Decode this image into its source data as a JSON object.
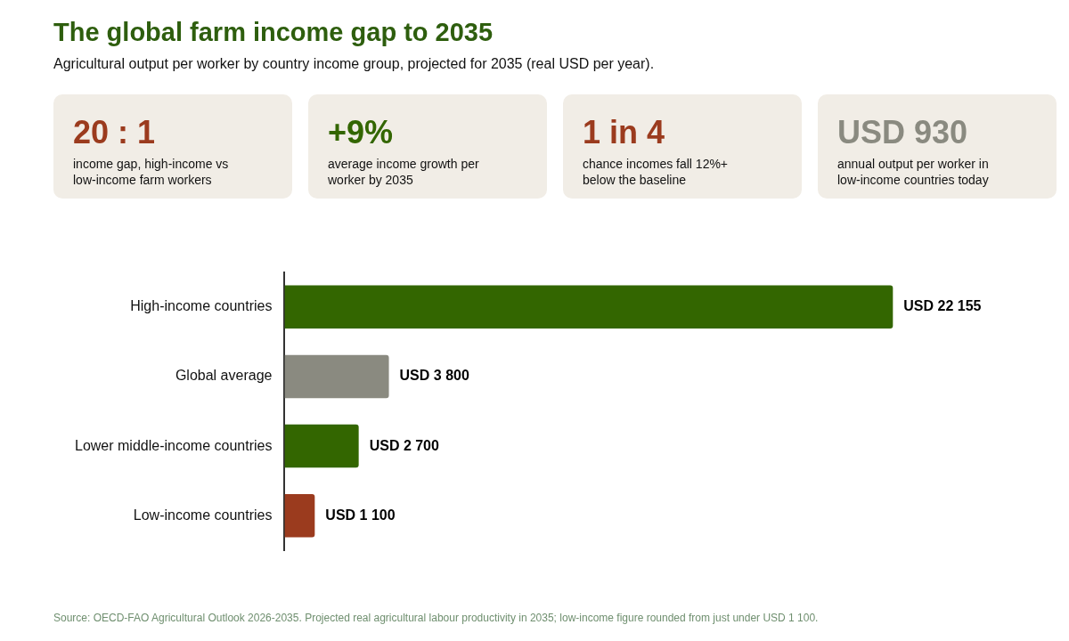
{
  "chart_data": [
    {
      "type": "other",
      "title": "The global farm income gap to 2035",
      "subtitle": "Agricultural output per worker by country income group, projected for 2035 (real USD per year).",
      "categories": [
        "20 : 1",
        "+9%",
        "1 in 4",
        "USD 930"
      ],
      "annotations": [
        "income gap, high-income vs low-income farm workers",
        "average income growth per worker by 2035",
        "chance incomes fall 12%+ below the baseline",
        "annual output per worker in low-income countries today"
      ]
    },
    {
      "type": "bar",
      "orientation": "horizontal",
      "categories": [
        "High-income countries",
        "Global average",
        "Lower middle-income countries",
        "Low-income countries"
      ],
      "values": [
        22155,
        3800,
        2700,
        1100
      ],
      "colors": [
        "#336600",
        "#8a8a80",
        "#336600",
        "#9b3b1e"
      ],
      "value_labels": [
        "USD 22 155",
        "USD 3 800",
        "USD 2 700",
        "USD 1 100"
      ],
      "annotations": [
        "Source: OECD-FAO Agricultural Outlook 2026-2035. Projected real agricultural labour productivity in 2035; low-income figure rounded from just under USD 1 100."
      ]
    }
  ]
}
